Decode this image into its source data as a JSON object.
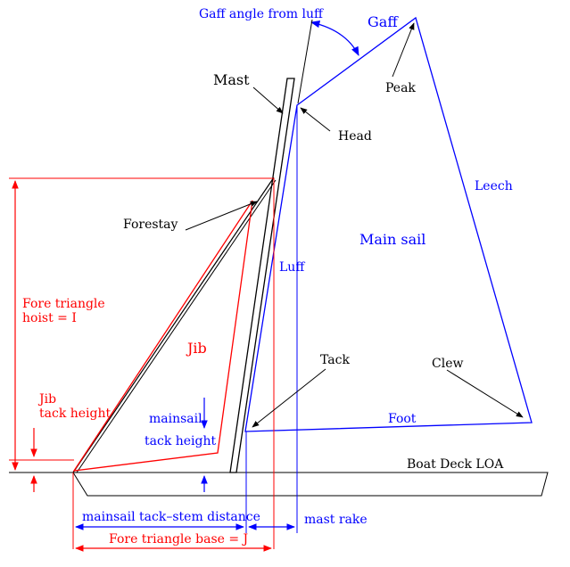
{
  "colors": {
    "black": "#000000",
    "blue": "#0000ff",
    "red": "#ff0000"
  },
  "labels": {
    "gaff_angle": "Gaff angle from luff",
    "gaff": "Gaff",
    "mast": "Mast",
    "peak": "Peak",
    "head": "Head",
    "leech": "Leech",
    "forestay": "Forestay",
    "main_sail": "Main sail",
    "luff": "Luff",
    "fore_triangle_hoist_line1": "Fore triangle",
    "fore_triangle_hoist_line2": "hoist = I",
    "jib": "Jib",
    "tack": "Tack",
    "clew": "Clew",
    "jib_tack_height_line1": "Jib",
    "jib_tack_height_line2": "tack height",
    "mainsail_tack_height_line1": "mainsail",
    "mainsail_tack_height_line2": "tack height",
    "foot": "Foot",
    "boat_deck_loa": "Boat Deck LOA",
    "mainsail_tack_stem_distance": "mainsail tack–stem distance",
    "mast_rake": "mast  rake",
    "fore_triangle_base": "Fore triangle base = J"
  }
}
